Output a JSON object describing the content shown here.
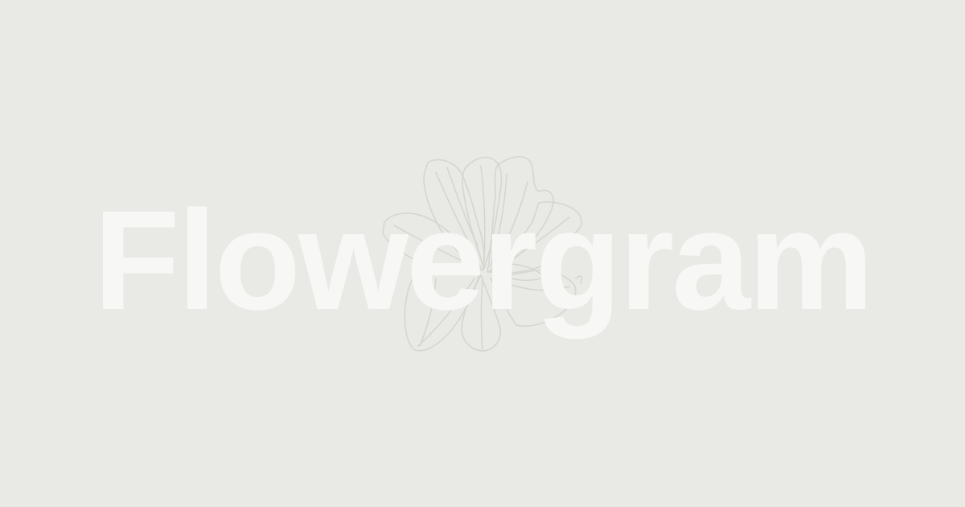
{
  "brand": {
    "name": "Flowergram"
  },
  "colors": {
    "background": "#e9e9e5",
    "wordmark": "#f7f7f6",
    "illustration_stroke": "#d5d5d0"
  },
  "icons": {
    "illustration": "flower-line-art-icon"
  }
}
